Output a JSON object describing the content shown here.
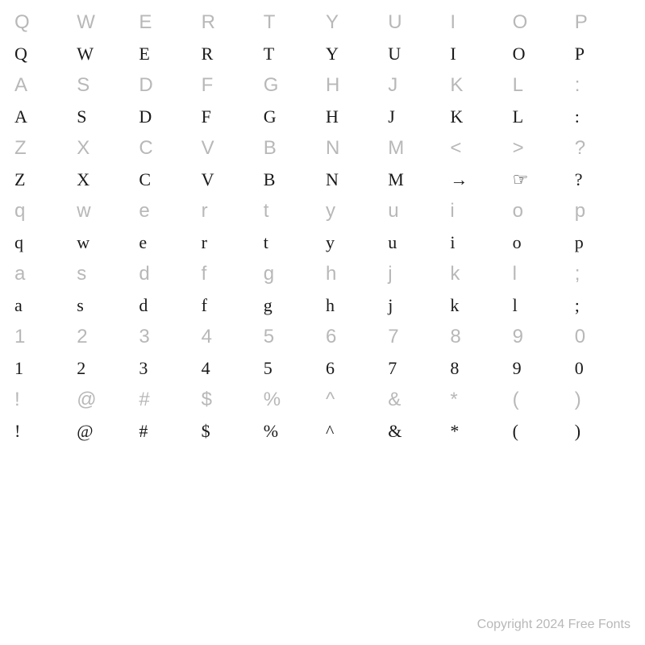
{
  "rows": [
    {
      "type": "ref",
      "cells": [
        "Q",
        "W",
        "E",
        "R",
        "T",
        "Y",
        "U",
        "I",
        "O",
        "P"
      ]
    },
    {
      "type": "sample",
      "cells": [
        "Q",
        "W",
        "E",
        "R",
        "T",
        "Y",
        "U",
        "I",
        "O",
        "P"
      ]
    },
    {
      "type": "ref",
      "cells": [
        "A",
        "S",
        "D",
        "F",
        "G",
        "H",
        "J",
        "K",
        "L",
        ":"
      ]
    },
    {
      "type": "sample",
      "cells": [
        "A",
        "S",
        "D",
        "F",
        "G",
        "H",
        "J",
        "K",
        "L",
        ":"
      ]
    },
    {
      "type": "ref",
      "cells": [
        "Z",
        "X",
        "C",
        "V",
        "B",
        "N",
        "M",
        "<",
        ">",
        "?"
      ]
    },
    {
      "type": "sample",
      "cells": [
        "Z",
        "X",
        "C",
        "V",
        "B",
        "N",
        "M",
        "→",
        "☞",
        "?"
      ]
    },
    {
      "type": "ref",
      "cells": [
        "q",
        "w",
        "e",
        "r",
        "t",
        "y",
        "u",
        "i",
        "o",
        "p"
      ]
    },
    {
      "type": "sample",
      "cells": [
        "q",
        "w",
        "e",
        "r",
        "t",
        "y",
        "u",
        "i",
        "o",
        "p"
      ]
    },
    {
      "type": "ref",
      "cells": [
        "a",
        "s",
        "d",
        "f",
        "g",
        "h",
        "j",
        "k",
        "l",
        ";"
      ]
    },
    {
      "type": "sample",
      "cells": [
        "a",
        "s",
        "d",
        "f",
        "g",
        "h",
        "j",
        "k",
        "l",
        ";"
      ]
    },
    {
      "type": "ref",
      "cells": [
        "1",
        "2",
        "3",
        "4",
        "5",
        "6",
        "7",
        "8",
        "9",
        "0"
      ]
    },
    {
      "type": "sample",
      "cells": [
        "1",
        "2",
        "3",
        "4",
        "5",
        "6",
        "7",
        "8",
        "9",
        "0"
      ]
    },
    {
      "type": "ref",
      "cells": [
        "!",
        "@",
        "#",
        "$",
        "%",
        "^",
        "&",
        "*",
        "(",
        ")"
      ]
    },
    {
      "type": "sample",
      "cells": [
        "!",
        "@",
        "#",
        "$",
        "%",
        "^",
        "&",
        "*",
        "(",
        ")"
      ]
    }
  ],
  "colors": {
    "ref": "#b8b8b8",
    "sample": "#1a1a1a",
    "background": "#ffffff"
  },
  "fontsizes": {
    "ref": 24,
    "sample": 22,
    "copyright": 16
  },
  "copyright": "Copyright 2024 Free Fonts"
}
